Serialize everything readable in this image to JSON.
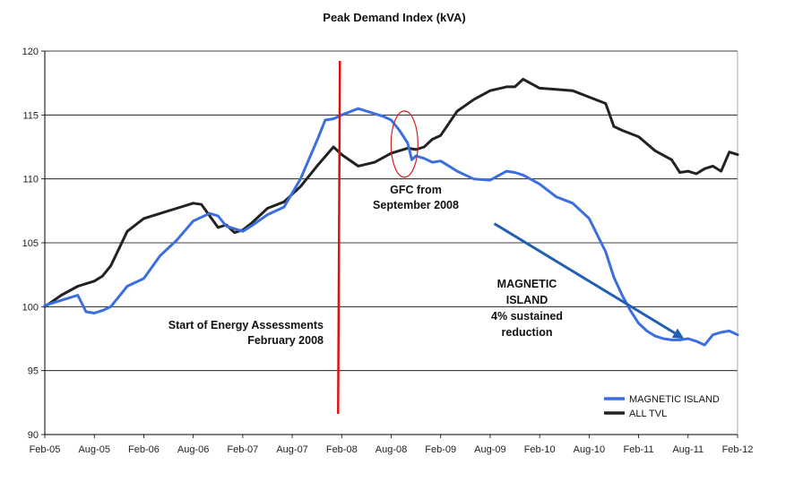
{
  "chart_data": {
    "type": "line",
    "title": "Peak Demand Index (kVA)",
    "xlabel": "",
    "ylabel": "",
    "ylim": [
      90,
      120
    ],
    "yticks": [
      90,
      95,
      100,
      105,
      110,
      115,
      120
    ],
    "x_tick_labels": [
      "Feb-05",
      "Aug-05",
      "Feb-06",
      "Aug-06",
      "Feb-07",
      "Aug-07",
      "Feb-08",
      "Aug-08",
      "Feb-09",
      "Aug-09",
      "Feb-10",
      "Aug-10",
      "Feb-11",
      "Aug-11",
      "Feb-12"
    ],
    "x_range_months": [
      0,
      84
    ],
    "grid": true,
    "legend_position": "bottom-right",
    "series": [
      {
        "name": "MAGNETIC ISLAND",
        "color": "#3b6fe0",
        "x": [
          0,
          2,
          4,
          5,
          6,
          7,
          8,
          10,
          12,
          14,
          16,
          18,
          20,
          21,
          22,
          23,
          24,
          25,
          27,
          29,
          31,
          33,
          34,
          35,
          36,
          38,
          40,
          41,
          42,
          43,
          44,
          44.5,
          45,
          46,
          47,
          48,
          50,
          52,
          54,
          56,
          57,
          58,
          60,
          62,
          64,
          66,
          68,
          69,
          70,
          71,
          72,
          73,
          74,
          75,
          76,
          77,
          78,
          79,
          80,
          81,
          82,
          83,
          84
        ],
        "values": [
          100.1,
          100.5,
          100.9,
          99.6,
          99.5,
          99.7,
          100.0,
          101.6,
          102.2,
          104.0,
          105.2,
          106.7,
          107.3,
          107.1,
          106.3,
          106.1,
          105.9,
          106.3,
          107.2,
          107.8,
          110.0,
          113.0,
          114.6,
          114.7,
          115.0,
          115.5,
          115.1,
          114.9,
          114.6,
          113.8,
          112.8,
          111.5,
          111.8,
          111.6,
          111.3,
          111.4,
          110.6,
          110.0,
          109.9,
          110.6,
          110.5,
          110.3,
          109.6,
          108.6,
          108.1,
          106.9,
          104.3,
          102.3,
          100.9,
          99.7,
          98.7,
          98.1,
          97.7,
          97.5,
          97.4,
          97.4,
          97.5,
          97.3,
          97.0,
          97.8,
          98.0,
          98.1,
          97.8
        ]
      },
      {
        "name": "ALL TVL",
        "color": "#222222",
        "x": [
          0,
          2,
          4,
          6,
          7,
          8,
          10,
          12,
          14,
          16,
          18,
          19,
          20,
          21,
          22,
          23,
          24,
          25,
          27,
          29,
          31,
          33,
          35,
          36,
          38,
          40,
          42,
          44,
          45,
          46,
          47,
          48,
          50,
          52,
          54,
          56,
          57,
          58,
          60,
          62,
          64,
          66,
          68,
          69,
          70,
          72,
          74,
          76,
          77,
          78,
          79,
          80,
          81,
          82,
          83,
          84
        ],
        "values": [
          100.0,
          100.9,
          101.6,
          102.0,
          102.4,
          103.2,
          105.9,
          106.9,
          107.3,
          107.7,
          108.1,
          108.0,
          107.1,
          106.2,
          106.4,
          105.8,
          106.0,
          106.5,
          107.7,
          108.2,
          109.4,
          111.0,
          112.5,
          111.9,
          111.0,
          111.3,
          112.0,
          112.4,
          112.3,
          112.5,
          113.1,
          113.4,
          115.3,
          116.2,
          116.9,
          117.2,
          117.2,
          117.8,
          117.1,
          117.0,
          116.9,
          116.4,
          115.9,
          114.1,
          113.8,
          113.3,
          112.2,
          111.5,
          110.5,
          110.6,
          110.4,
          110.8,
          111.0,
          110.6,
          112.1,
          111.9
        ]
      }
    ],
    "annotations": [
      {
        "id": "energy-assessment",
        "lines": [
          "Start of Energy Assessments",
          "February 2008"
        ],
        "marker_x_month": 36,
        "marker_color": "#e01010"
      },
      {
        "id": "gfc",
        "lines": [
          "GFC from",
          "September 2008"
        ],
        "ellipse_x_month": 43.5,
        "ellipse_y_value": 113.0,
        "ellipse_color": "#d02020"
      },
      {
        "id": "magnetic-island",
        "lines": [
          "MAGNETIC",
          "ISLAND",
          "4% sustained",
          "reduction"
        ],
        "arrow_from": [
          54.5,
          106.5
        ],
        "arrow_to": [
          77.5,
          97.5
        ],
        "arrow_color": "#1f5fb4"
      }
    ]
  }
}
